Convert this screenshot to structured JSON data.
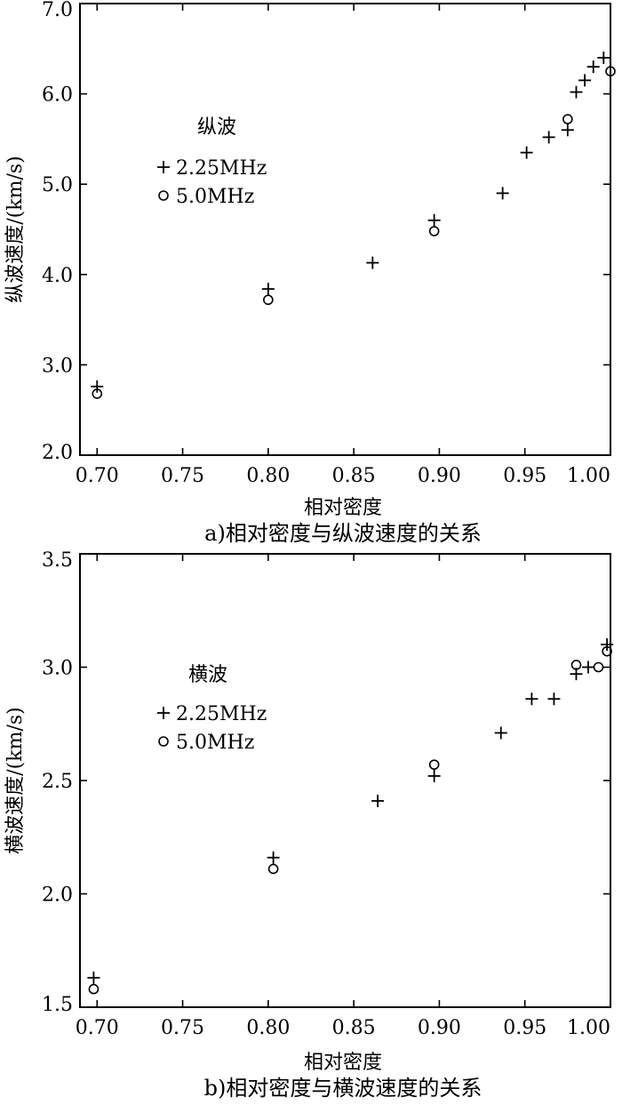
{
  "chart_data": [
    {
      "type": "scatter",
      "caption": "a)相对密度与纵波速度的关系",
      "xlabel": "相对密度",
      "ylabel": "纵波速度/(km/s)",
      "xlim": [
        0.69,
        1.0
      ],
      "ylim": [
        2.0,
        7.0
      ],
      "x_ticks": [
        "0.70",
        "0.75",
        "0.80",
        "0.85",
        "0.90",
        "0.95",
        "1.00"
      ],
      "y_ticks": [
        "2.0",
        "3.0",
        "4.0",
        "5.0",
        "6.0",
        "7.0"
      ],
      "legend": {
        "title": "纵波",
        "placement": "upper-left"
      },
      "series": [
        {
          "name": "2.25MHz",
          "marker": "plus",
          "points": [
            [
              0.7,
              2.76
            ],
            [
              0.8,
              3.84
            ],
            [
              0.861,
              4.13
            ],
            [
              0.897,
              4.6
            ],
            [
              0.937,
              4.9
            ],
            [
              0.951,
              5.35
            ],
            [
              0.964,
              5.52
            ],
            [
              0.975,
              5.6
            ],
            [
              0.98,
              6.02
            ],
            [
              0.985,
              6.15
            ],
            [
              0.99,
              6.3
            ],
            [
              0.996,
              6.4
            ]
          ]
        },
        {
          "name": "5.0MHz",
          "marker": "circle",
          "points": [
            [
              0.7,
              2.68
            ],
            [
              0.8,
              3.72
            ],
            [
              0.897,
              4.48
            ],
            [
              0.975,
              5.72
            ],
            [
              1.0,
              6.25
            ]
          ]
        }
      ]
    },
    {
      "type": "scatter",
      "caption": "b)相对密度与横波速度的关系",
      "xlabel": "相对密度",
      "ylabel": "横波速度/(km/s)",
      "xlim": [
        0.69,
        1.0
      ],
      "ylim": [
        1.5,
        3.5
      ],
      "x_ticks": [
        "0.70",
        "0.75",
        "0.80",
        "0.85",
        "0.90",
        "0.95",
        "1.00"
      ],
      "y_ticks": [
        "1.5",
        "2.0",
        "2.5",
        "3.0",
        "3.5"
      ],
      "legend": {
        "title": "横波",
        "placement": "upper-left"
      },
      "series": [
        {
          "name": "2.25MHz",
          "marker": "plus",
          "points": [
            [
              0.698,
              1.63
            ],
            [
              0.803,
              2.16
            ],
            [
              0.864,
              2.41
            ],
            [
              0.897,
              2.52
            ],
            [
              0.936,
              2.71
            ],
            [
              0.954,
              2.86
            ],
            [
              0.967,
              2.86
            ],
            [
              0.98,
              2.97
            ],
            [
              0.987,
              3.0
            ],
            [
              0.998,
              3.1
            ]
          ]
        },
        {
          "name": "5.0MHz",
          "marker": "circle",
          "points": [
            [
              0.698,
              1.58
            ],
            [
              0.803,
              2.11
            ],
            [
              0.897,
              2.57
            ],
            [
              0.98,
              3.01
            ],
            [
              0.993,
              3.0
            ],
            [
              0.998,
              3.07
            ]
          ]
        }
      ]
    }
  ]
}
